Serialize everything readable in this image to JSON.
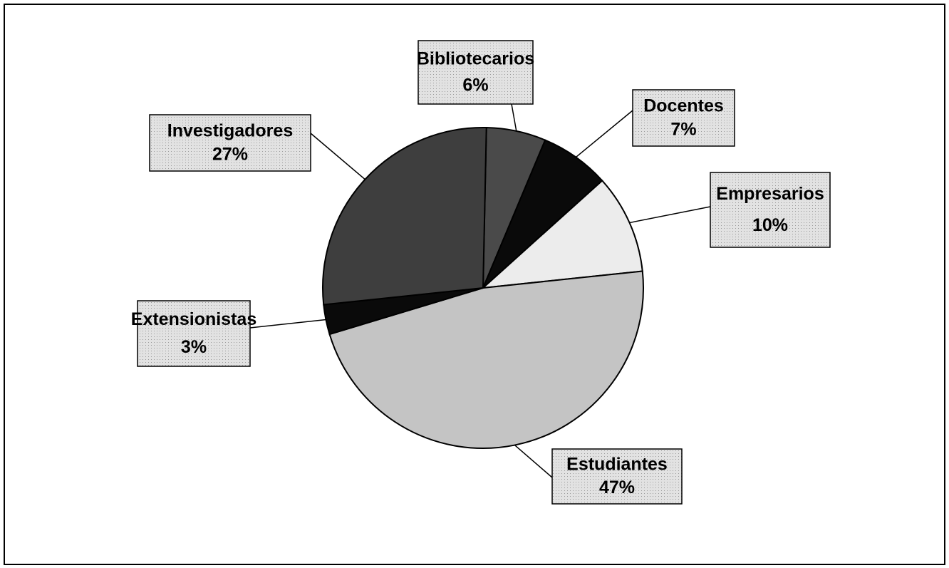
{
  "chart_data": {
    "type": "pie",
    "categories": [
      "Bibliotecarios",
      "Docentes",
      "Empresarios",
      "Estudiantes",
      "Extensionistas",
      "Investigadores"
    ],
    "values": [
      6,
      7,
      10,
      47,
      3,
      27
    ],
    "value_labels": [
      "6%",
      "7%",
      "10%",
      "47%",
      "3%",
      "27%"
    ],
    "colors": [
      "#4a4a4a",
      "#0a0a0a",
      "#ececec",
      "#c4c4c4",
      "#0a0a0a",
      "#3e3e3e"
    ]
  }
}
